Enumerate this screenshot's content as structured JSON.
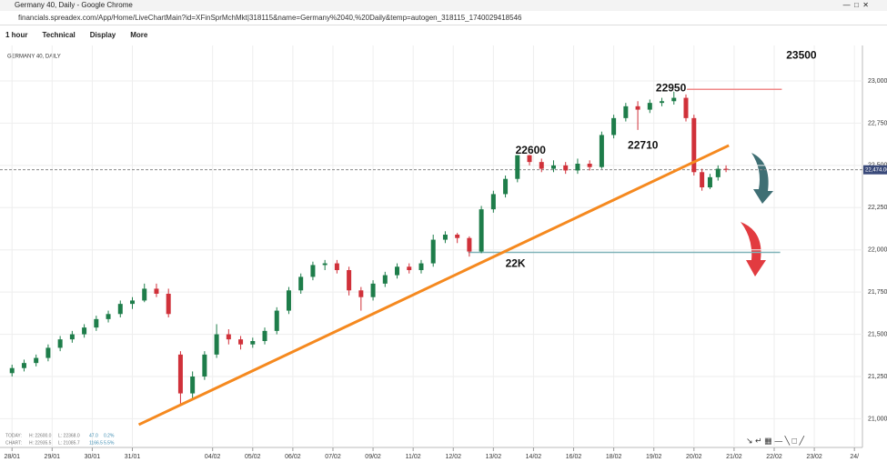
{
  "window": {
    "title": "Germany 40, Daily - Google Chrome",
    "url": "financials.spreadex.com/App/Home/LiveChartMain?id=XFinSprMchMkt|318115&name=Germany%2040,%20Daily&temp=autogen_318115_1740029418546"
  },
  "toolbar": [
    "1 hour",
    "Technical",
    "Display",
    "More"
  ],
  "info": {
    "today": [
      "TODAY:",
      "H: 22600.0",
      "L: 22368.0",
      "47.0",
      "0.2%"
    ],
    "chart": [
      "CHART:",
      "H: 22935.5",
      "L: 21085.7",
      "1166.5",
      "5.5%"
    ]
  },
  "chart_data": {
    "type": "candlestick",
    "title": "GERMANY 40, DAILY",
    "x": [
      0,
      0.3,
      0.6,
      0.9,
      1.2,
      1.5,
      1.8,
      2.1,
      2.4,
      2.7,
      3.0,
      3.3,
      3.6,
      3.9,
      4.2,
      4.5,
      4.8,
      5.1,
      5.4,
      5.7,
      6.0,
      6.3,
      6.6,
      6.9,
      7.2,
      7.5,
      7.8,
      8.1,
      8.4,
      8.7,
      9.0,
      9.3,
      9.6,
      9.9,
      10.2,
      10.5,
      10.8,
      11.1,
      11.4,
      11.7,
      12.0,
      12.3,
      12.6,
      12.9,
      13.2,
      13.5,
      13.8,
      14.1,
      14.4,
      14.7,
      15.0,
      15.3,
      15.6,
      15.9,
      16.2,
      16.5,
      16.8,
      17.0,
      17.2,
      17.4,
      17.6,
      17.8
    ],
    "open": [
      21270,
      21300,
      21330,
      21360,
      21420,
      21470,
      21500,
      21540,
      21590,
      21620,
      21680,
      21700,
      21770,
      21740,
      21380,
      21150,
      21250,
      21380,
      21500,
      21470,
      21440,
      21460,
      21520,
      21640,
      21760,
      21840,
      21910,
      21920,
      21880,
      21760,
      21720,
      21800,
      21850,
      21900,
      21880,
      21920,
      22060,
      22090,
      22070,
      21990,
      22240,
      22330,
      22420,
      22560,
      22520,
      22480,
      22500,
      22470,
      22510,
      22490,
      22680,
      22780,
      22850,
      22830,
      22870,
      22880,
      22900,
      22780,
      22460,
      22370,
      22430,
      22480
    ],
    "high": [
      21320,
      21350,
      21380,
      21440,
      21490,
      21520,
      21560,
      21610,
      21640,
      21700,
      21720,
      21800,
      21800,
      21770,
      21400,
      21280,
      21400,
      21560,
      21530,
      21490,
      21480,
      21540,
      21660,
      21780,
      21860,
      21930,
      21940,
      21940,
      21900,
      21780,
      21820,
      21870,
      21920,
      21920,
      21940,
      22090,
      22110,
      22100,
      22080,
      22260,
      22350,
      22440,
      22600,
      22590,
      22540,
      22530,
      22520,
      22540,
      22530,
      22700,
      22800,
      22870,
      22880,
      22890,
      22900,
      22950,
      22920,
      22800,
      22480,
      22450,
      22500,
      22500
    ],
    "low": [
      21250,
      21280,
      21310,
      21340,
      21400,
      21450,
      21480,
      21520,
      21570,
      21600,
      21650,
      21690,
      21720,
      21600,
      21080,
      21120,
      21230,
      21360,
      21440,
      21410,
      21420,
      21440,
      21500,
      21620,
      21740,
      21820,
      21880,
      21860,
      21730,
      21640,
      21700,
      21780,
      21830,
      21860,
      21860,
      21900,
      22040,
      22040,
      21960,
      21980,
      22220,
      22310,
      22400,
      22500,
      22460,
      22460,
      22450,
      22450,
      22470,
      22480,
      22660,
      22760,
      22710,
      22810,
      22850,
      22860,
      22760,
      22440,
      22350,
      22360,
      22410,
      22460
    ],
    "close": [
      21300,
      21330,
      21360,
      21420,
      21470,
      21500,
      21540,
      21590,
      21620,
      21680,
      21700,
      21770,
      21740,
      21620,
      21150,
      21250,
      21380,
      21500,
      21470,
      21440,
      21460,
      21520,
      21640,
      21760,
      21840,
      21910,
      21920,
      21880,
      21760,
      21720,
      21800,
      21850,
      21900,
      21880,
      21920,
      22060,
      22090,
      22070,
      21990,
      22240,
      22330,
      22420,
      22560,
      22520,
      22480,
      22500,
      22470,
      22510,
      22490,
      22680,
      22780,
      22850,
      22830,
      22870,
      22880,
      22900,
      22780,
      22460,
      22370,
      22430,
      22480,
      22474
    ],
    "up_color": "#1e7d4a",
    "down_color": "#d0313a",
    "xlim": [
      -0.3,
      21.2
    ],
    "ylim": [
      20830,
      23210
    ],
    "xticks": [
      {
        "value": 0,
        "label": "28/01"
      },
      {
        "value": 1,
        "label": "29/01"
      },
      {
        "value": 2,
        "label": "30/01"
      },
      {
        "value": 3,
        "label": "31/01"
      },
      {
        "value": 5,
        "label": "04/02"
      },
      {
        "value": 6,
        "label": "05/02"
      },
      {
        "value": 7,
        "label": "06/02"
      },
      {
        "value": 8,
        "label": "07/02"
      },
      {
        "value": 9,
        "label": "09/02"
      },
      {
        "value": 10,
        "label": "11/02"
      },
      {
        "value": 11,
        "label": "12/02"
      },
      {
        "value": 12,
        "label": "13/02"
      },
      {
        "value": 13,
        "label": "14/02"
      },
      {
        "value": 14,
        "label": "16/02"
      },
      {
        "value": 15,
        "label": "18/02"
      },
      {
        "value": 16,
        "label": "19/02"
      },
      {
        "value": 17,
        "label": "20/02"
      },
      {
        "value": 18,
        "label": "21/02"
      },
      {
        "value": 19,
        "label": "22/02"
      },
      {
        "value": 20,
        "label": "23/02"
      },
      {
        "value": 21,
        "label": "24/"
      }
    ],
    "yticks": [
      {
        "value": 21000,
        "label": "21,000"
      },
      {
        "value": 21250,
        "label": "21,250"
      },
      {
        "value": 21500,
        "label": "21,500"
      },
      {
        "value": 21750,
        "label": "21,750"
      },
      {
        "value": 22000,
        "label": "22,000"
      },
      {
        "value": 22250,
        "label": "22,250"
      },
      {
        "value": 22500,
        "label": "22,500"
      },
      {
        "value": 22750,
        "label": "22,750"
      },
      {
        "value": 23000,
        "label": "23,000"
      }
    ],
    "grid": true,
    "last_price": {
      "value": 22474,
      "label": "22,474.00"
    },
    "trend_line": {
      "x": [
        3.16,
        17.87
      ],
      "y": [
        20965,
        22618
      ],
      "color": "#f5891f"
    },
    "levels": [
      {
        "y": 22950,
        "x": [
          16.42,
          19.19
        ],
        "color": "#f08a8a"
      },
      {
        "y": 21985,
        "x": [
          11.37,
          19.15
        ],
        "color": "#7fb3b8"
      }
    ],
    "annotations": [
      {
        "text": "22950",
        "x": 16.05,
        "y": 22955
      },
      {
        "text": "22600",
        "x": 12.55,
        "y": 22585
      },
      {
        "text": "22710",
        "x": 15.35,
        "y": 22615
      },
      {
        "text": "22K",
        "x": 12.3,
        "y": 21915
      },
      {
        "text": "23500",
        "x": 19.3,
        "y": 23150
      }
    ]
  }
}
